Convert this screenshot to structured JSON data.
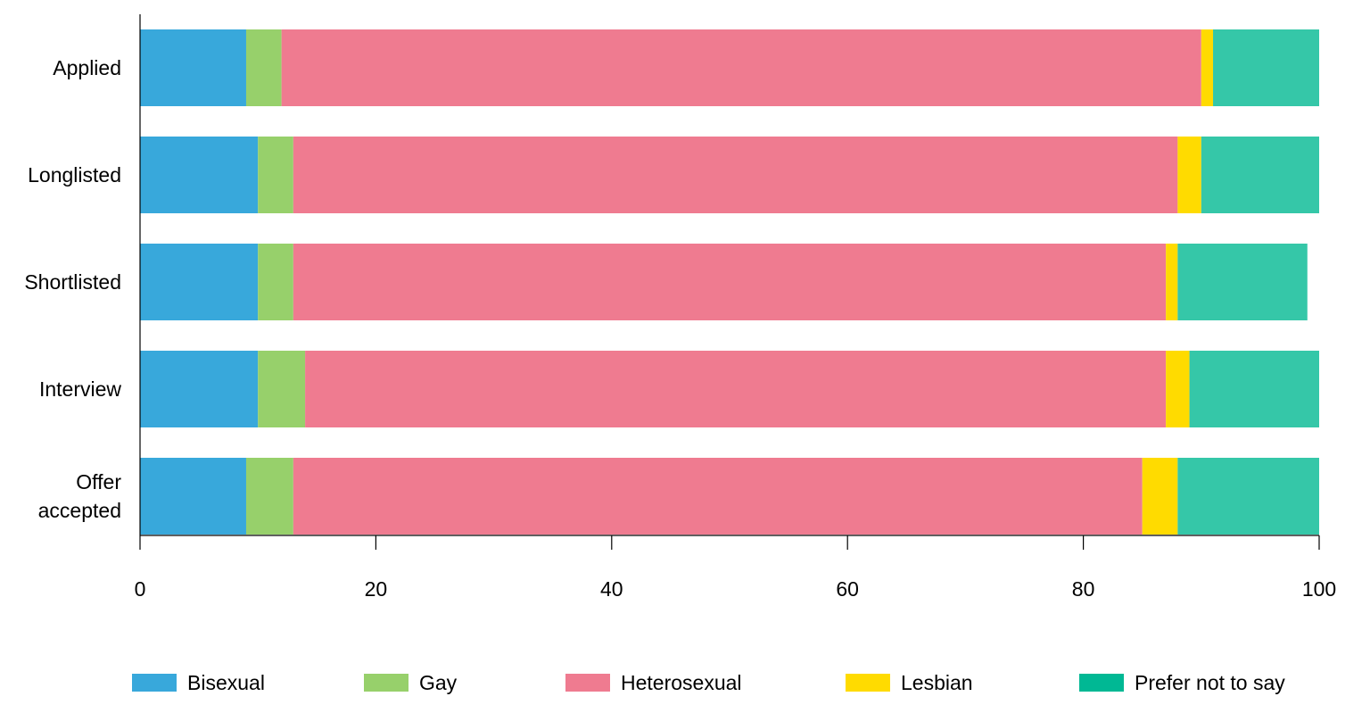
{
  "chart_data": {
    "type": "bar",
    "orientation": "horizontal",
    "stacked": true,
    "categories": [
      [
        "Applied"
      ],
      [
        "Longlisted"
      ],
      [
        "Shortlisted"
      ],
      [
        "Interview"
      ],
      [
        "Offer",
        "accepted"
      ]
    ],
    "series": [
      {
        "name": "Bisexual",
        "color": "#38a8db",
        "values": [
          9,
          10,
          10,
          10,
          9
        ]
      },
      {
        "name": "Gay",
        "color": "#97d06b",
        "values": [
          3,
          3,
          3,
          4,
          4
        ]
      },
      {
        "name": "Heterosexual",
        "color": "#ef7b90",
        "values": [
          78,
          75,
          74,
          73,
          72
        ]
      },
      {
        "name": "Lesbian",
        "color": "#ffdb00",
        "values": [
          1,
          2,
          1,
          2,
          3
        ]
      },
      {
        "name": "Prefer not to say",
        "color": "#35c7a8",
        "values": [
          9,
          10,
          11,
          11,
          12
        ]
      }
    ],
    "xlim": [
      0,
      100
    ],
    "xticks": [
      "0",
      "20",
      "40",
      "60",
      "80",
      "100"
    ],
    "grid": false,
    "legend_position": "bottom"
  },
  "legend": [
    {
      "label": "Bisexual",
      "color": "#38a8db"
    },
    {
      "label": "Gay",
      "color": "#97d06b"
    },
    {
      "label": "Heterosexual",
      "color": "#ef7b90"
    },
    {
      "label": "Lesbian",
      "color": "#ffdb00"
    },
    {
      "label": "Prefer not to say",
      "color": "#00b894"
    }
  ]
}
